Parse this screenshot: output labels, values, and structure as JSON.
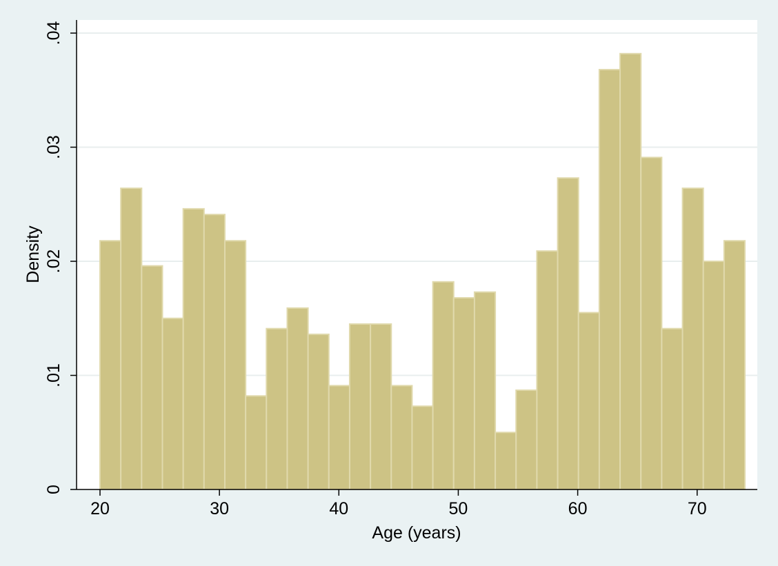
{
  "chart_data": {
    "type": "bar",
    "histogram": true,
    "xlabel": "Age (years)",
    "ylabel": "Density",
    "xlim": [
      20,
      74
    ],
    "ylim": [
      0,
      0.04
    ],
    "xticks": [
      20,
      30,
      40,
      50,
      60,
      70
    ],
    "xtick_labels": [
      "20",
      "30",
      "40",
      "50",
      "60",
      "70"
    ],
    "yticks": [
      0,
      0.01,
      0.02,
      0.03,
      0.04
    ],
    "ytick_labels": [
      "0",
      ".01",
      ".02",
      ".03",
      ".04"
    ],
    "grid": "horizontal",
    "bin_edges": [
      20,
      21.742,
      23.484,
      25.226,
      26.968,
      28.71,
      30.452,
      32.194,
      33.936,
      35.678,
      37.42,
      39.162,
      40.904,
      42.646,
      44.388,
      46.13,
      47.872,
      49.614,
      51.356,
      53.098,
      54.84,
      56.582,
      58.324,
      60.066,
      61.808,
      63.55,
      65.292,
      67.034,
      68.776,
      70.518,
      72.26,
      74
    ],
    "values": [
      0.0218,
      0.0264,
      0.0196,
      0.015,
      0.0246,
      0.0241,
      0.0218,
      0.0082,
      0.0141,
      0.0159,
      0.0136,
      0.0091,
      0.0145,
      0.0145,
      0.0091,
      0.0073,
      0.0182,
      0.0168,
      0.0173,
      0.005,
      0.0087,
      0.0209,
      0.0273,
      0.0155,
      0.0368,
      0.0382,
      0.0291,
      0.0141,
      0.0264,
      0.02,
      0.0218
    ],
    "colors": {
      "background": "#eaf2f3",
      "plot": "#ffffff",
      "bar_fill": "#cdc385",
      "bar_edge": "#e0d9ac",
      "grid": "#e8eeee",
      "axis": "#000000"
    }
  }
}
